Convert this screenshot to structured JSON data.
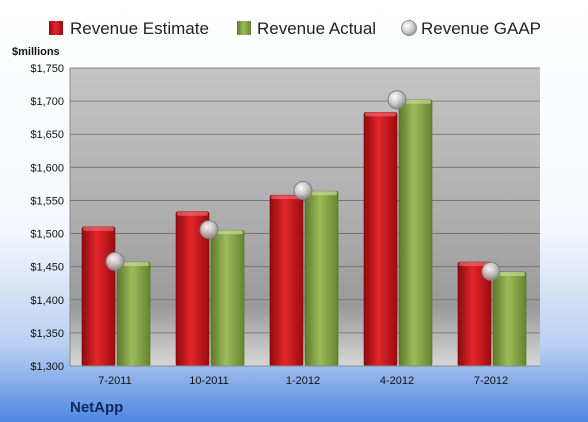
{
  "chart_data": {
    "type": "bar",
    "title": "",
    "xlabel": "",
    "ylabel": "$millions",
    "company": "NetApp",
    "categories": [
      "7-2011",
      "10-2011",
      "1-2012",
      "4-2012",
      "7-2012"
    ],
    "ylim": [
      1300,
      1750
    ],
    "yticks": [
      1300,
      1350,
      1400,
      1450,
      1500,
      1550,
      1600,
      1650,
      1700,
      1750
    ],
    "ytick_labels": [
      "$1,300",
      "$1,350",
      "$1,400",
      "$1,450",
      "$1,500",
      "$1,550",
      "$1,600",
      "$1,650",
      "$1,700",
      "$1,750"
    ],
    "grid": true,
    "legend_position": "top",
    "series": [
      {
        "name": "Revenue Estimate",
        "kind": "bar",
        "color": "#d0161c",
        "values": [
          1510,
          1533,
          1558,
          1683,
          1457
        ]
      },
      {
        "name": "Revenue Actual",
        "kind": "bar",
        "color": "#8aa84a",
        "values": [
          1457,
          1505,
          1564,
          1702,
          1442
        ]
      },
      {
        "name": "Revenue GAAP",
        "kind": "marker",
        "color": "#b8b8b8",
        "values": [
          1458,
          1506,
          1565,
          1702,
          1443
        ]
      }
    ]
  }
}
